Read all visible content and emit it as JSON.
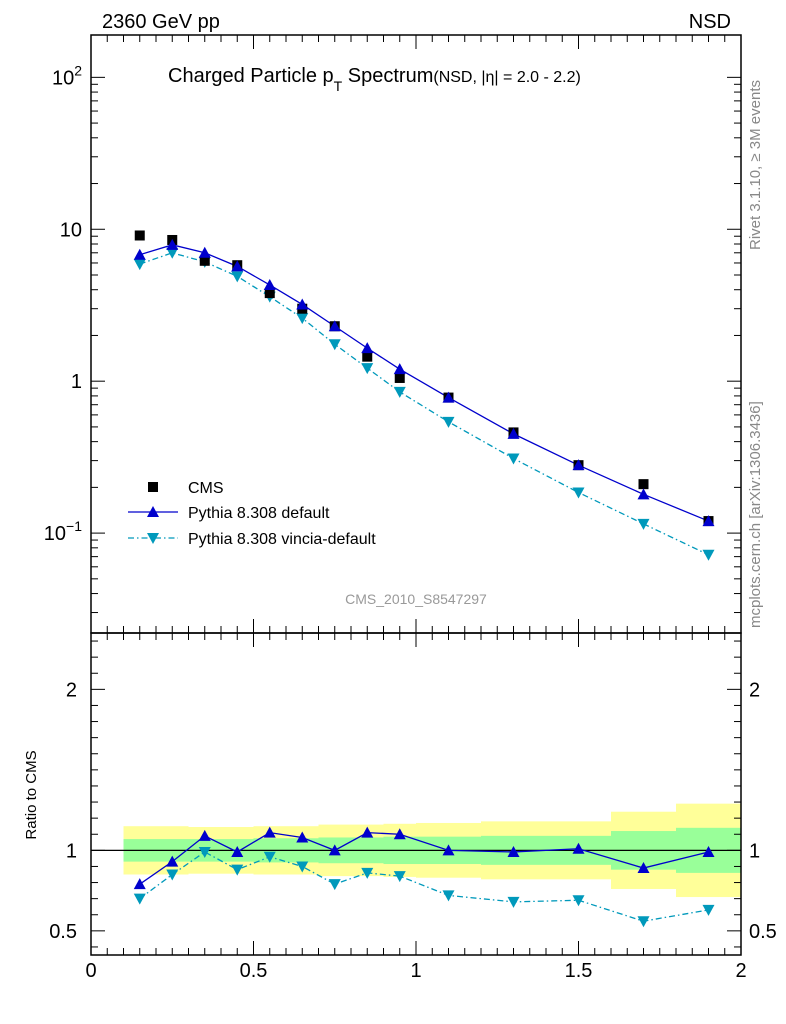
{
  "header": {
    "left": "2360 GeV pp",
    "right": "NSD"
  },
  "side_labels": {
    "rivet": "Rivet 3.1.10, ≥ 3M events",
    "mcplots": "mcplots.cern.ch [arXiv:1306.3436]"
  },
  "colors": {
    "data": "#000000",
    "default": "#0000cc",
    "vincia": "#0099bb",
    "band_inner": "#99ff99",
    "band_outer": "#ffff99"
  },
  "chart_data": [
    {
      "type": "scatter",
      "title_main": "Charged Particle p",
      "title_sub": "T",
      "title_main2": " Spectrum",
      "title_note": "(NSD, |η| = 2.0 - 2.2)",
      "watermark": "CMS_2010_S8547297",
      "yscale": "log",
      "ylim": [
        0.022,
        190
      ],
      "xlim": [
        0,
        2
      ],
      "ytick_labels": [
        {
          "value": 100,
          "base": "10",
          "exp": "2"
        },
        {
          "value": 10,
          "base": "10",
          "exp": ""
        },
        {
          "value": 1,
          "base": "1",
          "exp": ""
        },
        {
          "value": 0.1,
          "base": "10",
          "exp": "−1"
        }
      ],
      "legend": [
        {
          "key": "cms",
          "label": "CMS"
        },
        {
          "key": "default",
          "label": "Pythia 8.308 default"
        },
        {
          "key": "vincia",
          "label": "Pythia 8.308 vincia-default"
        }
      ],
      "legend_position": "lower-left",
      "x": [
        0.15,
        0.25,
        0.35,
        0.45,
        0.55,
        0.65,
        0.75,
        0.85,
        0.95,
        1.1,
        1.3,
        1.5,
        1.7,
        1.9
      ],
      "series": [
        {
          "key": "cms",
          "name": "CMS",
          "values": [
            9.1,
            8.5,
            6.2,
            5.8,
            3.8,
            3.0,
            2.3,
            1.45,
            1.05,
            0.78,
            0.46,
            0.28,
            0.21,
            0.12
          ]
        },
        {
          "key": "default",
          "name": "Pythia 8.308 default",
          "values": [
            6.8,
            7.9,
            7.0,
            5.7,
            4.3,
            3.2,
            2.3,
            1.65,
            1.2,
            0.78,
            0.45,
            0.28,
            0.18,
            0.12
          ]
        },
        {
          "key": "vincia",
          "name": "Pythia 8.308 vincia-default",
          "values": [
            5.9,
            7.0,
            6.1,
            4.9,
            3.6,
            2.6,
            1.75,
            1.22,
            0.85,
            0.54,
            0.31,
            0.185,
            0.115,
            0.072
          ]
        }
      ]
    },
    {
      "type": "scatter",
      "ylabel": "Ratio to CMS",
      "ylim": [
        0.35,
        2.35
      ],
      "xlim": [
        0,
        2
      ],
      "yticks": [
        0.5,
        1,
        2
      ],
      "ytick_labels": [
        "0.5",
        "1",
        "2"
      ],
      "xticks": [
        0,
        0.5,
        1,
        1.5,
        2
      ],
      "xtick_labels": [
        "0",
        "0.5",
        "1",
        "1.5",
        "2"
      ],
      "bands": [
        {
          "x0": 0.1,
          "x1": 0.2,
          "inner": [
            0.93,
            1.07
          ],
          "outer": [
            0.85,
            1.15
          ]
        },
        {
          "x0": 0.2,
          "x1": 0.3,
          "inner": [
            0.93,
            1.07
          ],
          "outer": [
            0.85,
            1.15
          ]
        },
        {
          "x0": 0.3,
          "x1": 0.4,
          "inner": [
            0.93,
            1.07
          ],
          "outer": [
            0.855,
            1.145
          ]
        },
        {
          "x0": 0.4,
          "x1": 0.5,
          "inner": [
            0.93,
            1.07
          ],
          "outer": [
            0.855,
            1.145
          ]
        },
        {
          "x0": 0.5,
          "x1": 0.6,
          "inner": [
            0.925,
            1.075
          ],
          "outer": [
            0.85,
            1.15
          ]
        },
        {
          "x0": 0.6,
          "x1": 0.7,
          "inner": [
            0.925,
            1.075
          ],
          "outer": [
            0.85,
            1.15
          ]
        },
        {
          "x0": 0.7,
          "x1": 0.8,
          "inner": [
            0.92,
            1.08
          ],
          "outer": [
            0.84,
            1.16
          ]
        },
        {
          "x0": 0.8,
          "x1": 0.9,
          "inner": [
            0.92,
            1.08
          ],
          "outer": [
            0.84,
            1.16
          ]
        },
        {
          "x0": 0.9,
          "x1": 1.0,
          "inner": [
            0.915,
            1.085
          ],
          "outer": [
            0.835,
            1.165
          ]
        },
        {
          "x0": 1.0,
          "x1": 1.2,
          "inner": [
            0.915,
            1.085
          ],
          "outer": [
            0.83,
            1.17
          ]
        },
        {
          "x0": 1.2,
          "x1": 1.4,
          "inner": [
            0.91,
            1.09
          ],
          "outer": [
            0.82,
            1.18
          ]
        },
        {
          "x0": 1.4,
          "x1": 1.6,
          "inner": [
            0.91,
            1.09
          ],
          "outer": [
            0.82,
            1.18
          ]
        },
        {
          "x0": 1.6,
          "x1": 1.8,
          "inner": [
            0.88,
            1.12
          ],
          "outer": [
            0.76,
            1.24
          ]
        },
        {
          "x0": 1.8,
          "x1": 2.0,
          "inner": [
            0.86,
            1.14
          ],
          "outer": [
            0.71,
            1.29
          ]
        }
      ],
      "x": [
        0.15,
        0.25,
        0.35,
        0.45,
        0.55,
        0.65,
        0.75,
        0.85,
        0.95,
        1.1,
        1.3,
        1.5,
        1.7,
        1.9
      ],
      "series": [
        {
          "key": "default",
          "values": [
            0.79,
            0.93,
            1.09,
            0.99,
            1.11,
            1.08,
            1.0,
            1.11,
            1.1,
            1.0,
            0.99,
            1.01,
            0.89,
            0.99
          ]
        },
        {
          "key": "vincia",
          "values": [
            0.7,
            0.85,
            0.99,
            0.88,
            0.96,
            0.9,
            0.79,
            0.86,
            0.84,
            0.72,
            0.68,
            0.69,
            0.56,
            0.63
          ]
        }
      ]
    }
  ]
}
